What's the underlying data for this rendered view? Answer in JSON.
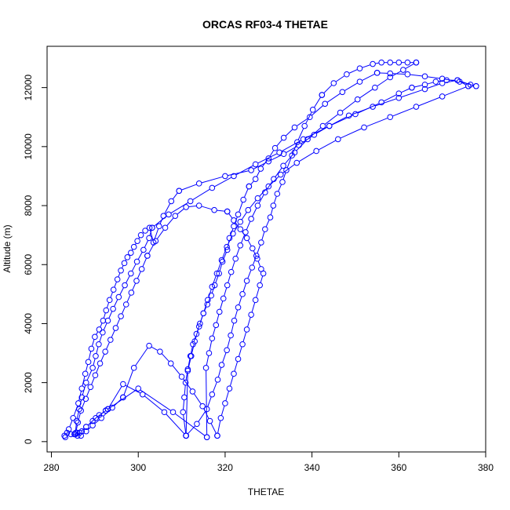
{
  "chart_data": {
    "type": "scatter",
    "title": "ORCAS RF03-4 THETAE",
    "xlabel": "THETAE",
    "ylabel": "Altitude (m)",
    "xlim": [
      279,
      380
    ],
    "ylim": [
      -350,
      13400
    ],
    "x_ticks": [
      280,
      300,
      320,
      340,
      360,
      380
    ],
    "y_ticks": [
      0,
      2000,
      4000,
      6000,
      8000,
      10000,
      12000
    ],
    "grid": false,
    "legend": "none",
    "marker": "open-circle",
    "connect_points": true,
    "colors": {
      "series": "#0000ff",
      "axes": "#000000",
      "background": "#ffffff"
    },
    "series": [
      {
        "x": [
          283.2,
          284.0,
          285.0,
          286.2,
          287.0,
          287.8,
          288.5,
          289.2,
          290.0,
          291.0,
          291.9,
          292.6,
          293.4,
          294.3,
          295.2,
          296.0,
          296.8,
          297.5,
          298.3,
          299.0,
          299.8,
          300.6,
          301.6,
          302.6,
          303.5,
          304.8,
          305.8,
          307.6,
          309.4
        ],
        "y": [
          150,
          420,
          800,
          1300,
          1800,
          2300,
          2700,
          3150,
          3550,
          3800,
          4100,
          4450,
          4800,
          5150,
          5500,
          5800,
          6050,
          6250,
          6400,
          6600,
          6800,
          7000,
          7150,
          7250,
          6750,
          7300,
          7650,
          8150,
          8500
        ]
      },
      {
        "x": [
          309.4,
          314.0,
          320.0,
          326.0,
          330.0,
          333.5,
          337.0,
          340.5,
          344.0,
          348.5,
          354.0,
          360.0,
          366.0,
          370.0,
          373.5,
          376.5,
          377.8
        ],
        "y": [
          8500,
          8750,
          9000,
          9200,
          9500,
          9750,
          10050,
          10400,
          10700,
          11050,
          11350,
          11650,
          11950,
          12150,
          12250,
          12100,
          12050
        ]
      },
      {
        "x": [
          377.8,
          374.0,
          370.0,
          366.0,
          362.0,
          358.0,
          355.0
        ],
        "y": [
          12050,
          12200,
          12300,
          12380,
          12450,
          12480,
          12500
        ]
      },
      {
        "x": [
          355.0,
          351.0,
          347.0,
          343.0,
          339.5,
          336.0,
          333.5,
          331.5,
          330.0,
          328.2,
          327.0,
          325.5
        ],
        "y": [
          12500,
          12200,
          11850,
          11450,
          11000,
          10650,
          10300,
          9950,
          9600,
          9250,
          8900,
          8650
        ]
      },
      {
        "x": [
          325.5,
          324.2,
          323.0,
          322.0,
          321.0,
          320.5,
          319.4,
          318.6,
          317.6,
          316.8,
          315.9,
          315.0,
          314.2,
          313.4,
          312.6,
          312.0,
          311.4,
          310.9,
          310.6,
          310.3,
          311.0
        ],
        "y": [
          8650,
          8200,
          7700,
          7300,
          6900,
          6500,
          6100,
          5700,
          5300,
          4950,
          4650,
          4350,
          4000,
          3650,
          3300,
          2900,
          2450,
          2000,
          1500,
          1000,
          200
        ]
      },
      {
        "x": [
          311.0,
          313.5,
          315.8,
          317.0,
          318.3,
          319.2,
          320.4,
          321.3,
          322.1,
          323.0,
          324.0,
          325.0,
          326.2,
          327.2,
          328.3,
          329.2,
          330.4,
          331.1,
          332.0,
          333.2,
          334.1,
          335.4,
          336.6,
          338.3,
          340.2,
          342.3
        ],
        "y": [
          200,
          600,
          1100,
          1600,
          2100,
          2600,
          3100,
          3600,
          4100,
          4550,
          5000,
          5450,
          5900,
          6300,
          6750,
          7200,
          7600,
          8000,
          8400,
          8800,
          9200,
          9700,
          10150,
          10700,
          11250,
          11750
        ]
      },
      {
        "x": [
          342.3,
          345.0,
          348.0,
          351.0,
          354.0,
          356.0,
          358.0,
          360.0,
          362.0,
          364.0
        ],
        "y": [
          11750,
          12150,
          12450,
          12650,
          12800,
          12850,
          12850,
          12850,
          12850,
          12850
        ]
      },
      {
        "x": [
          364.0,
          361.0,
          358.0,
          354.5,
          350.5,
          346.5,
          342.5,
          339.0,
          336.0,
          333.4,
          331.2,
          329.2,
          327.5,
          326.0,
          324.7,
          323.5,
          322.4,
          321.4,
          320.5,
          319.6,
          318.7,
          317.9,
          317.0,
          316.3,
          315.6,
          315.8
        ],
        "y": [
          12850,
          12600,
          12350,
          12000,
          11600,
          11150,
          10700,
          10250,
          9800,
          9350,
          8900,
          8450,
          8000,
          7550,
          7100,
          6650,
          6200,
          5750,
          5300,
          4850,
          4400,
          3950,
          3500,
          3000,
          2500,
          150
        ]
      },
      {
        "x": [
          315.8,
          308.0,
          300.0,
          292.5
        ],
        "y": [
          150,
          1000,
          1800,
          1050
        ]
      },
      {
        "x": [
          292.5,
          291.0,
          289.5,
          288.0,
          287.0,
          286.0,
          285.5,
          285.8,
          286.4,
          287.0,
          288.0,
          289.5,
          290.2,
          290.9,
          291.8,
          293.0,
          294.2,
          295.5,
          296.9,
          298.3,
          299.7,
          301.2,
          302.5,
          303.2
        ],
        "y": [
          1050,
          900,
          700,
          500,
          350,
          300,
          250,
          700,
          1100,
          1500,
          2000,
          2500,
          2900,
          3300,
          3700,
          4100,
          4500,
          4900,
          5300,
          5700,
          6100,
          6500,
          6900,
          7250
        ]
      },
      {
        "x": [
          303.2,
          307.0,
          312.0,
          317.0,
          322.0,
          327.0,
          332.5,
          338.0,
          344.0,
          350.0,
          356.0,
          360.0,
          363.0
        ],
        "y": [
          7250,
          7700,
          8150,
          8600,
          9000,
          9400,
          9800,
          10250,
          10700,
          11100,
          11500,
          11800,
          12000
        ]
      },
      {
        "x": [
          363.0,
          366.0,
          368.5,
          371.0,
          373.5,
          376.0
        ],
        "y": [
          12000,
          12100,
          12200,
          12250,
          12250,
          12050
        ]
      },
      {
        "x": [
          376.0,
          370.0,
          364.0,
          358.0,
          352.0,
          346.0,
          341.0,
          336.5,
          332.8,
          330.0,
          327.5,
          325.3,
          323.5,
          321.8,
          320.4,
          319.2,
          318.1,
          317.0,
          316.0,
          315.0,
          314.0,
          313.0,
          312.2,
          311.4,
          311.0
        ],
        "y": [
          12050,
          11700,
          11350,
          11000,
          10650,
          10250,
          9850,
          9450,
          9050,
          8650,
          8250,
          7850,
          7450,
          7050,
          6600,
          6150,
          5700,
          5250,
          4800,
          4350,
          3900,
          3400,
          2900,
          2400,
          200
        ]
      },
      {
        "x": [
          311.0,
          306.0,
          301.0,
          296.5,
          293.0
        ],
        "y": [
          200,
          1000,
          1600,
          1950,
          1100
        ]
      },
      {
        "x": [
          293.0,
          290.2,
          288.0,
          286.5,
          285.6,
          286.1,
          286.8,
          287.9,
          289.0,
          290.1,
          291.2,
          292.4,
          293.6,
          294.8,
          296.0,
          297.2,
          298.4,
          299.6,
          300.8,
          302.1
        ],
        "y": [
          1100,
          800,
          500,
          300,
          300,
          650,
          1050,
          1450,
          1850,
          2250,
          2650,
          3050,
          3450,
          3850,
          4250,
          4650,
          5050,
          5450,
          5850,
          6300
        ]
      },
      {
        "x": [
          302.1,
          304.0,
          306.2,
          308.5,
          311.0,
          314.0,
          317.5,
          320.5
        ],
        "y": [
          6300,
          6800,
          7250,
          7650,
          7950,
          8000,
          7850,
          7800
        ]
      },
      {
        "x": [
          320.5,
          322.0,
          323.5,
          325.0,
          326.3,
          327.4,
          328.3,
          328.8,
          328.0,
          327.0,
          326.0,
          325.0,
          324.0,
          323.0,
          322.0,
          321.0,
          320.0,
          319.0,
          318.2
        ],
        "y": [
          7800,
          7500,
          7200,
          6900,
          6550,
          6200,
          5850,
          5700,
          5300,
          4800,
          4300,
          3800,
          3300,
          2800,
          2300,
          1800,
          1300,
          800,
          200
        ]
      },
      {
        "x": [
          318.2,
          316.5,
          314.8,
          312.5,
          310.0,
          307.5,
          305.0,
          302.5,
          299.0,
          296.5
        ],
        "y": [
          200,
          700,
          1200,
          1700,
          2200,
          2650,
          3050,
          3250,
          2500,
          1500
        ]
      },
      {
        "x": [
          296.5,
          294.0,
          291.5,
          289.5,
          288.0,
          286.8,
          286.0,
          285.3,
          284.5,
          283.6,
          283.0
        ],
        "y": [
          1500,
          1150,
          800,
          550,
          350,
          200,
          200,
          250,
          250,
          300,
          200
        ]
      }
    ]
  }
}
